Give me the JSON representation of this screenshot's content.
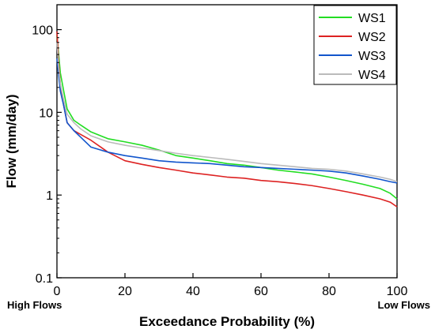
{
  "chart_data": {
    "type": "line",
    "title": "",
    "xlabel": "Exceedance Probability (%)",
    "ylabel": "Flow (mm/day)",
    "xlim": [
      0,
      100
    ],
    "ylim": [
      0.1,
      200
    ],
    "yscale": "log",
    "xticks": [
      0,
      20,
      40,
      60,
      80,
      100
    ],
    "xtick_labels": [
      "0",
      "20",
      "40",
      "60",
      "80",
      "100"
    ],
    "yticks": [
      0.1,
      1,
      10,
      100
    ],
    "ytick_labels": [
      "0.1",
      "1",
      "10",
      "100"
    ],
    "grid": false,
    "legend_position": "top-right",
    "annotations": {
      "left": "High Flows",
      "right": "Low Flows"
    },
    "series": [
      {
        "name": "WS1",
        "color": "#22dd22",
        "x": [
          0,
          0.5,
          1,
          2,
          3,
          5,
          7,
          10,
          15,
          20,
          25,
          30,
          35,
          40,
          45,
          50,
          55,
          60,
          65,
          70,
          75,
          80,
          85,
          90,
          95,
          98,
          100
        ],
        "y": [
          85,
          50,
          30,
          18,
          11,
          8,
          7,
          5.8,
          4.8,
          4.4,
          4.0,
          3.5,
          3.0,
          2.8,
          2.6,
          2.4,
          2.3,
          2.15,
          2.0,
          1.9,
          1.8,
          1.65,
          1.5,
          1.35,
          1.2,
          1.05,
          0.9
        ]
      },
      {
        "name": "WS2",
        "color": "#dd2222",
        "x": [
          0,
          0.5,
          1,
          2,
          3,
          5,
          7,
          10,
          15,
          20,
          25,
          30,
          35,
          40,
          45,
          50,
          55,
          60,
          65,
          70,
          75,
          80,
          85,
          90,
          95,
          98,
          100
        ],
        "y": [
          95,
          40,
          22,
          12,
          7.5,
          6,
          5.4,
          4.6,
          3.3,
          2.6,
          2.35,
          2.15,
          2.0,
          1.85,
          1.75,
          1.65,
          1.6,
          1.5,
          1.45,
          1.38,
          1.3,
          1.2,
          1.1,
          1.0,
          0.9,
          0.82,
          0.72
        ]
      },
      {
        "name": "WS3",
        "color": "#1155cc",
        "x": [
          0,
          0.5,
          1,
          2,
          3,
          5,
          7,
          10,
          15,
          20,
          25,
          30,
          35,
          40,
          45,
          50,
          55,
          60,
          65,
          70,
          75,
          80,
          85,
          90,
          95,
          98,
          100
        ],
        "y": [
          45,
          28,
          18,
          12,
          7.5,
          6,
          5,
          3.8,
          3.3,
          3.0,
          2.8,
          2.6,
          2.5,
          2.45,
          2.4,
          2.3,
          2.2,
          2.15,
          2.1,
          2.05,
          2.0,
          1.95,
          1.85,
          1.7,
          1.55,
          1.45,
          1.4
        ]
      },
      {
        "name": "WS4",
        "color": "#bbbbbb",
        "x": [
          0,
          0.5,
          1,
          2,
          3,
          5,
          7,
          10,
          15,
          20,
          25,
          30,
          35,
          40,
          45,
          50,
          55,
          60,
          65,
          70,
          75,
          80,
          85,
          90,
          95,
          98,
          100
        ],
        "y": [
          70,
          35,
          22,
          14,
          9.5,
          7.5,
          6.3,
          5.2,
          4.4,
          4.0,
          3.7,
          3.45,
          3.2,
          3.0,
          2.85,
          2.7,
          2.55,
          2.4,
          2.3,
          2.2,
          2.1,
          2.05,
          1.95,
          1.8,
          1.65,
          1.55,
          1.45
        ]
      }
    ]
  }
}
